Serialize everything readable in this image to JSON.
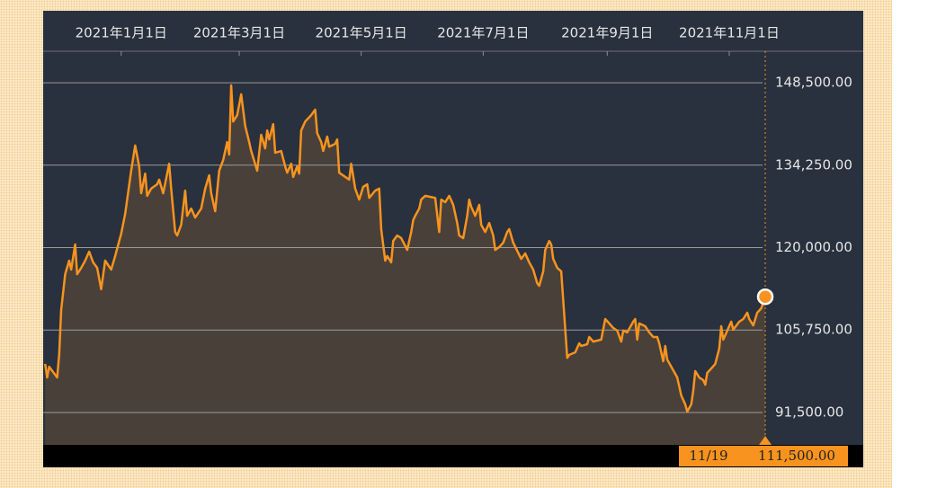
{
  "chart_data": {
    "type": "line",
    "x": [
      "2020-11-24",
      "2020-11-25",
      "2020-11-26",
      "2020-11-30",
      "2020-12-01",
      "2020-12-02",
      "2020-12-04",
      "2020-12-06",
      "2020-12-07",
      "2020-12-09",
      "2020-12-10",
      "2020-12-12",
      "2020-12-14",
      "2020-12-16",
      "2020-12-18",
      "2020-12-20",
      "2020-12-22",
      "2020-12-24",
      "2020-12-27",
      "2020-12-29",
      "2021-01-01",
      "2021-01-03",
      "2021-01-05",
      "2021-01-06",
      "2021-01-08",
      "2021-01-10",
      "2021-01-11",
      "2021-01-13",
      "2021-01-14",
      "2021-01-16",
      "2021-01-19",
      "2021-01-20",
      "2021-01-22",
      "2021-01-25",
      "2021-01-26",
      "2021-01-28",
      "2021-01-29",
      "2021-01-31",
      "2021-02-02",
      "2021-02-03",
      "2021-02-05",
      "2021-02-07",
      "2021-02-10",
      "2021-02-12",
      "2021-02-14",
      "2021-02-15",
      "2021-02-17",
      "2021-02-19",
      "2021-02-21",
      "2021-02-23",
      "2021-02-24",
      "2021-02-25",
      "2021-02-26",
      "2021-02-28",
      "2021-03-02",
      "2021-03-04",
      "2021-03-06",
      "2021-03-07",
      "2021-03-10",
      "2021-03-12",
      "2021-03-14",
      "2021-03-15",
      "2021-03-16",
      "2021-03-18",
      "2021-03-19",
      "2021-03-22",
      "2021-03-24",
      "2021-03-25",
      "2021-03-27",
      "2021-03-28",
      "2021-03-30",
      "2021-03-31",
      "2021-04-01",
      "2021-04-03",
      "2021-04-06",
      "2021-04-08",
      "2021-04-09",
      "2021-04-11",
      "2021-04-12",
      "2021-04-14",
      "2021-04-15",
      "2021-04-18",
      "2021-04-19",
      "2021-04-20",
      "2021-04-25",
      "2021-04-26",
      "2021-04-28",
      "2021-04-30",
      "2021-05-02",
      "2021-05-04",
      "2021-05-05",
      "2021-05-08",
      "2021-05-10",
      "2021-05-11",
      "2021-05-13",
      "2021-05-14",
      "2021-05-16",
      "2021-05-17",
      "2021-05-19",
      "2021-05-21",
      "2021-05-24",
      "2021-05-26",
      "2021-05-27",
      "2021-05-28",
      "2021-05-30",
      "2021-05-31",
      "2021-06-02",
      "2021-06-07",
      "2021-06-09",
      "2021-06-10",
      "2021-06-12",
      "2021-06-14",
      "2021-06-16",
      "2021-06-18",
      "2021-06-19",
      "2021-06-21",
      "2021-06-23",
      "2021-06-24",
      "2021-06-25",
      "2021-06-27",
      "2021-06-29",
      "2021-06-30",
      "2021-07-02",
      "2021-07-04",
      "2021-07-06",
      "2021-07-07",
      "2021-07-09",
      "2021-07-11",
      "2021-07-13",
      "2021-07-14",
      "2021-07-16",
      "2021-07-20",
      "2021-07-22",
      "2021-07-24",
      "2021-07-26",
      "2021-07-28",
      "2021-07-29",
      "2021-07-31",
      "2021-08-01",
      "2021-08-03",
      "2021-08-04",
      "2021-08-05",
      "2021-08-07",
      "2021-08-09",
      "2021-08-12",
      "2021-08-13",
      "2021-08-16",
      "2021-08-18",
      "2021-08-19",
      "2021-08-22",
      "2021-08-23",
      "2021-08-25",
      "2021-08-29",
      "2021-08-31",
      "2021-09-02",
      "2021-09-04",
      "2021-09-06",
      "2021-09-08",
      "2021-09-09",
      "2021-09-11",
      "2021-09-14",
      "2021-09-15",
      "2021-09-16",
      "2021-09-17",
      "2021-09-20",
      "2021-09-22",
      "2021-09-24",
      "2021-09-26",
      "2021-09-27",
      "2021-09-29",
      "2021-09-30",
      "2021-10-01",
      "2021-10-04",
      "2021-10-06",
      "2021-10-08",
      "2021-10-10",
      "2021-10-11",
      "2021-10-13",
      "2021-10-14",
      "2021-10-15",
      "2021-10-17",
      "2021-10-19",
      "2021-10-20",
      "2021-10-21",
      "2021-10-23",
      "2021-10-25",
      "2021-10-27",
      "2021-10-28",
      "2021-10-29",
      "2021-10-31",
      "2021-11-02",
      "2021-11-03",
      "2021-11-06",
      "2021-11-08",
      "2021-11-10",
      "2021-11-11",
      "2021-11-13",
      "2021-11-15",
      "2021-11-17",
      "2021-11-19"
    ],
    "values": [
      99900,
      97550,
      99400,
      97550,
      101450,
      109200,
      115400,
      117750,
      116200,
      120550,
      115400,
      116500,
      117750,
      119300,
      117450,
      116500,
      112800,
      117750,
      116200,
      118550,
      122400,
      125850,
      130800,
      133300,
      137650,
      134050,
      129400,
      132800,
      128950,
      130200,
      130950,
      131750,
      129400,
      134500,
      130200,
      122700,
      122100,
      123950,
      129850,
      125500,
      126750,
      125200,
      126750,
      130200,
      132500,
      129400,
      126300,
      133300,
      135150,
      138250,
      136100,
      148050,
      141800,
      142900,
      146500,
      141050,
      138250,
      136700,
      133300,
      139500,
      137150,
      140250,
      138700,
      141350,
      136400,
      136700,
      134050,
      132950,
      134500,
      132200,
      134050,
      132800,
      140250,
      141800,
      142900,
      143850,
      139800,
      138250,
      136700,
      139200,
      137450,
      137950,
      138700,
      132950,
      131750,
      134500,
      130200,
      128300,
      130500,
      130950,
      128600,
      129850,
      130200,
      123200,
      117750,
      118550,
      117450,
      121150,
      122100,
      121650,
      119600,
      122700,
      124750,
      125500,
      126750,
      128300,
      128950,
      128600,
      122700,
      128300,
      127850,
      128950,
      127400,
      124250,
      122100,
      121650,
      125500,
      128300,
      127050,
      125500,
      127400,
      123950,
      122700,
      124250,
      122100,
      119600,
      120100,
      120850,
      122700,
      123200,
      120850,
      118050,
      119000,
      117450,
      116200,
      113850,
      113400,
      115900,
      119600,
      121150,
      120550,
      118050,
      116500,
      115900,
      100950,
      101450,
      101900,
      103450,
      103000,
      103300,
      104550,
      103750,
      104100,
      107650,
      106900,
      106100,
      105650,
      103750,
      105650,
      105350,
      107200,
      107650,
      104100,
      106900,
      106400,
      105350,
      104550,
      104550,
      103450,
      100350,
      103000,
      100650,
      98800,
      97550,
      94450,
      92900,
      91650,
      92900,
      95250,
      98650,
      97550,
      97100,
      96300,
      98350,
      99100,
      99900,
      102550,
      106400,
      104100,
      105650,
      107200,
      105800,
      107200,
      107650,
      108750,
      107650,
      106550,
      108750,
      109500,
      111500
    ],
    "color": "#f7931e",
    "fill": "#4a403a",
    "xlim": [
      "2020-11-23",
      "2022-01-07"
    ],
    "xticks": [
      {
        "value": "2021-01-01",
        "label": "2021年1月1日"
      },
      {
        "value": "2021-03-01",
        "label": "2021年3月1日"
      },
      {
        "value": "2021-05-01",
        "label": "2021年5月1日"
      },
      {
        "value": "2021-07-01",
        "label": "2021年7月1日"
      },
      {
        "value": "2021-09-01",
        "label": "2021年9月1日"
      },
      {
        "value": "2021-11-01",
        "label": "2021年11月1日"
      }
    ],
    "ylim": [
      85900,
      153950
    ],
    "yticks": [
      {
        "value": 91500,
        "label": "91,500.00"
      },
      {
        "value": 105750,
        "label": "105,750.00"
      },
      {
        "value": 120000,
        "label": "120,000.00"
      },
      {
        "value": 134250,
        "label": "134,250.00"
      },
      {
        "value": 148500,
        "label": "148,500.00"
      }
    ],
    "grid": true,
    "last_point": {
      "x_label": "11/19",
      "value_label": "111,500.00"
    }
  }
}
